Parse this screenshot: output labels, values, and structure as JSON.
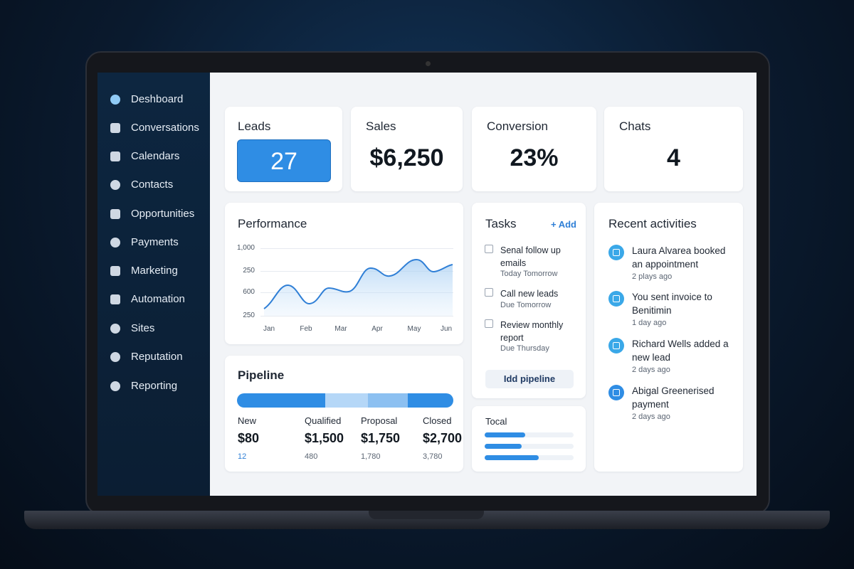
{
  "sidebar": {
    "items": [
      "Deshboard",
      "Conversations",
      "Calendars",
      "Contacts",
      "Opportunities",
      "Payments",
      "Marketing",
      "Automation",
      "Sites",
      "Reputation",
      "Reporting"
    ]
  },
  "stats": [
    {
      "label": "Leads",
      "value": "27"
    },
    {
      "label": "Sales",
      "value": "$6,250"
    },
    {
      "label": "Conversion",
      "value": "23%"
    },
    {
      "label": "Chats",
      "value": "4"
    }
  ],
  "performance": {
    "title": "Performance",
    "y_labels": [
      "1,000",
      "250",
      "600",
      "250"
    ],
    "x_labels": [
      "Jan",
      "Feb",
      "Mar",
      "Apr",
      "May",
      "Jun"
    ]
  },
  "pipeline": {
    "title": "Pipeline",
    "stages": [
      {
        "name": "New",
        "amount": "$80",
        "count": "12"
      },
      {
        "name": "Qualified",
        "amount": "$1,500",
        "count": "480"
      },
      {
        "name": "Proposal",
        "amount": "$1,750",
        "count": "1,780"
      },
      {
        "name": "Closed",
        "amount": "$2,700",
        "count": "3,780"
      }
    ]
  },
  "tasks": {
    "title": "Tasks",
    "add": "+ Add",
    "items": [
      {
        "title": "Senal follow up emails",
        "due": "Today Tomorrow"
      },
      {
        "title": "Call new leads",
        "due": "Due Tomorrow"
      },
      {
        "title": "Review monthly report",
        "due": "Due Thursday"
      }
    ],
    "button": "Idd pipeline"
  },
  "total": {
    "title": "Tocal"
  },
  "activities": {
    "title": "Recent activities",
    "items": [
      {
        "text": "Laura Alvarea booked an appointment",
        "time": "2 plays ago"
      },
      {
        "text": "You sent invoice to Benitimin",
        "time": "1 day ago"
      },
      {
        "text": "Richard Wells added a new lead",
        "time": "2 days ago"
      },
      {
        "text": "Abigal Greenerised payment",
        "time": "2 days ago"
      }
    ]
  }
}
